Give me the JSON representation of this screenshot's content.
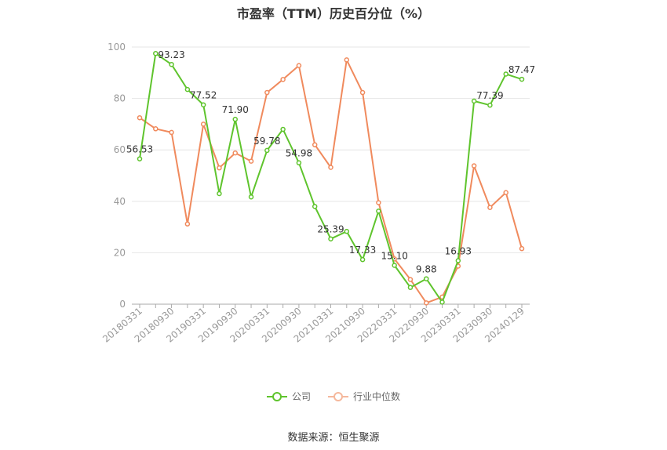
{
  "chart_data": {
    "type": "line",
    "title": "市盈率（TTM）历史百分位（%）",
    "xlabel": "",
    "ylabel": "",
    "ylim": [
      0,
      100
    ],
    "yticks": [
      0,
      20,
      40,
      60,
      80,
      100
    ],
    "grid": true,
    "legend_position": "bottom",
    "categories": [
      "20180331",
      "20180630",
      "20180930",
      "20181231",
      "20190331",
      "20190630",
      "20190930",
      "20191231",
      "20200331",
      "20200630",
      "20200930",
      "20201231",
      "20210331",
      "20210630",
      "20210930",
      "20211231",
      "20220331",
      "20220630",
      "20220930",
      "20221231",
      "20230331",
      "20230630",
      "20230930",
      "20231231",
      "20240129"
    ],
    "xtick_labels": [
      "20180331",
      "20180930",
      "20190331",
      "20190930",
      "20200331",
      "20200930",
      "20210331",
      "20210930",
      "20220331",
      "20220930",
      "20230331",
      "20230930",
      "20240129"
    ],
    "series": [
      {
        "name": "公司",
        "color": "#5fc42d",
        "values": [
          56.53,
          97.5,
          93.23,
          83.5,
          77.52,
          43.0,
          71.9,
          41.7,
          59.78,
          68.0,
          54.98,
          38.0,
          25.39,
          28.3,
          17.33,
          36.2,
          15.1,
          6.5,
          9.88,
          0.8,
          16.93,
          79.0,
          77.39,
          89.5,
          87.47
        ],
        "labels": [
          "56.53",
          "",
          "93.23",
          "",
          "77.52",
          "",
          "71.90",
          "",
          "59.78",
          "",
          "54.98",
          "",
          "25.39",
          "",
          "17.33",
          "",
          "15.10",
          "",
          "9.88",
          "",
          "16.93",
          "",
          "77.39",
          "",
          "87.47"
        ]
      },
      {
        "name": "行业中位数",
        "color": "#f08a5d",
        "values": [
          72.5,
          68.2,
          66.8,
          31.2,
          70.0,
          53.0,
          58.8,
          55.6,
          82.3,
          87.4,
          92.8,
          62.0,
          53.2,
          95.0,
          82.3,
          39.5,
          17.6,
          9.6,
          0.5,
          2.8,
          14.8,
          53.8,
          37.6,
          43.4,
          21.6
        ],
        "labels": []
      }
    ]
  },
  "footer": {
    "source": "数据来源：恒生聚源"
  }
}
